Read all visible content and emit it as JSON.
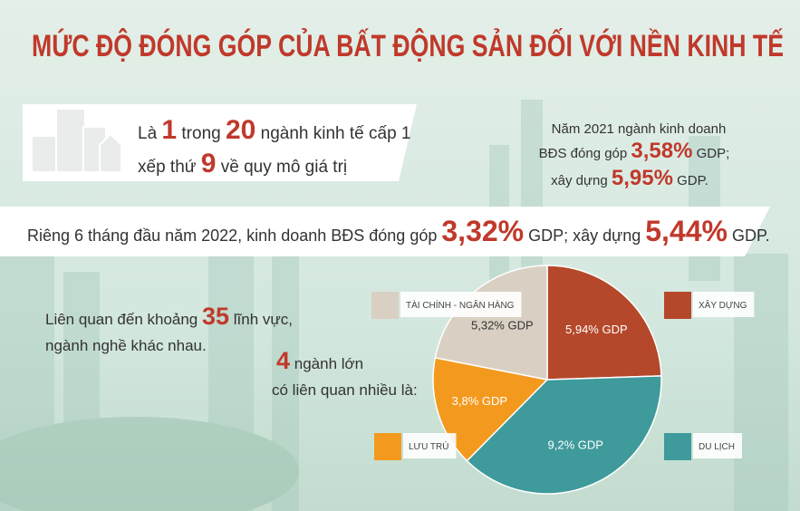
{
  "chart_data": {
    "type": "pie",
    "title": "MỨC ĐỘ ĐÓNG GÓP CỦA BẤT ĐỘNG SẢN ĐỐI VỚI NỀN KINH TẾ",
    "categories": [
      "XÂY DỰNG",
      "DU LỊCH",
      "LƯU TRÚ",
      "TÀI CHÍNH - NGÂN HÀNG"
    ],
    "values": [
      5.94,
      9.2,
      3.8,
      5.32
    ],
    "value_labels": [
      "5,94% GDP",
      "9,2% GDP",
      "3,8% GDP",
      "5,32% GDP"
    ],
    "colors": [
      "#b5482a",
      "#3f9a9b",
      "#f39a1e",
      "#d9d0c3"
    ]
  },
  "rank": {
    "line1": [
      "Là",
      "1",
      "trong",
      "20",
      "ngành kinh tế cấp 1"
    ],
    "line2": [
      "xếp thứ",
      "9",
      "về quy mô giá trị"
    ]
  },
  "year2021": {
    "line1": "Năm 2021 ngành kinh doanh",
    "line2": [
      "BĐS đóng góp",
      "3,58%",
      "GDP;"
    ],
    "line3": [
      "xây dựng",
      "5,95%",
      "GDP."
    ]
  },
  "banner": [
    "Riêng 6 tháng đầu năm 2022, kinh doanh BĐS đóng góp",
    "3,32%",
    "GDP; xây dựng",
    "5,44%",
    "GDP."
  ],
  "fields": {
    "line1": [
      "Liên quan đến khoảng",
      "35",
      "lĩnh vực,"
    ],
    "line2": "ngành nghề khác nhau."
  },
  "sectors": {
    "line1": [
      "4",
      "ngành lớn"
    ],
    "line2": "có liên quan nhiều là:"
  }
}
